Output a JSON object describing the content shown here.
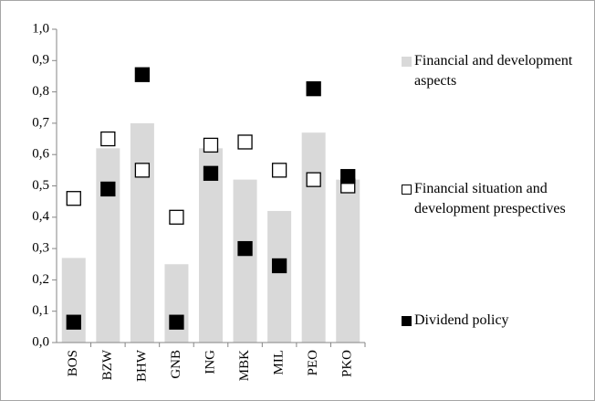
{
  "chart_data": {
    "type": "bar",
    "categories": [
      "BOS",
      "BZW",
      "BHW",
      "GNB",
      "ING",
      "MBK",
      "MIL",
      "PEO",
      "PKO"
    ],
    "series": [
      {
        "name": "Financial and development aspects",
        "type": "bar",
        "color": "#d9d9d9",
        "values": [
          0.27,
          0.62,
          0.7,
          0.25,
          0.62,
          0.52,
          0.42,
          0.67,
          0.52
        ]
      },
      {
        "name": "Financial situation and development prespectives",
        "type": "scatter",
        "marker": "open",
        "color": "#000000",
        "values": [
          0.46,
          0.65,
          0.55,
          0.4,
          0.63,
          0.64,
          0.55,
          0.52,
          0.5
        ]
      },
      {
        "name": "Dividend policy",
        "type": "scatter",
        "marker": "filled",
        "color": "#000000",
        "values": [
          0.065,
          0.49,
          0.855,
          0.065,
          0.54,
          0.3,
          0.245,
          0.81,
          0.53
        ]
      }
    ],
    "ylim": [
      0,
      1
    ],
    "yticks": [
      {
        "value": 0,
        "label": "0,0"
      },
      {
        "value": 0.1,
        "label": "0,1"
      },
      {
        "value": 0.2,
        "label": "0,2"
      },
      {
        "value": 0.3,
        "label": "0,3"
      },
      {
        "value": 0.4,
        "label": "0,4"
      },
      {
        "value": 0.5,
        "label": "0,5"
      },
      {
        "value": 0.6,
        "label": "0,6"
      },
      {
        "value": 0.7,
        "label": "0,7"
      },
      {
        "value": 0.8,
        "label": "0,8"
      },
      {
        "value": 0.9,
        "label": "0,9"
      },
      {
        "value": 1,
        "label": "1,0"
      }
    ],
    "legend": "right"
  }
}
